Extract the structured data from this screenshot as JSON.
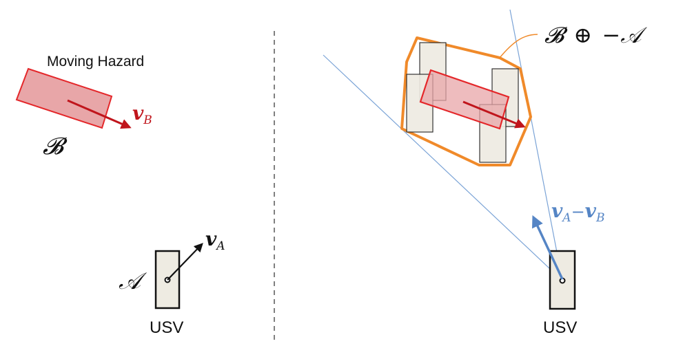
{
  "left_panel": {
    "hazard_label": "Moving Hazard",
    "hazard_symbol": "𝓑",
    "hazard_velocity": {
      "main": "v",
      "sub": "B"
    },
    "usv_symbol": "𝒜",
    "usv_velocity": {
      "main": "v",
      "sub": "A"
    },
    "usv_label": "USV"
  },
  "right_panel": {
    "minkowski_label": {
      "b": "𝓑",
      "op": "⊕",
      "neg": "−",
      "a": "𝒜"
    },
    "relative_velocity": {
      "a": "v",
      "a_sub": "A",
      "minus": "−",
      "b": "v",
      "b_sub": "B"
    },
    "usv_label": "USV"
  },
  "colors": {
    "hazard_fill": "#e8a6a8",
    "hazard_stroke": "#e4272a",
    "hazard_arrow": "#c0151c",
    "usv_fill": "#eeebe2",
    "orange": "#f08a2a",
    "cone_line": "#7aa3d6",
    "rel_arrow": "#5585c5",
    "divider": "#555555"
  }
}
